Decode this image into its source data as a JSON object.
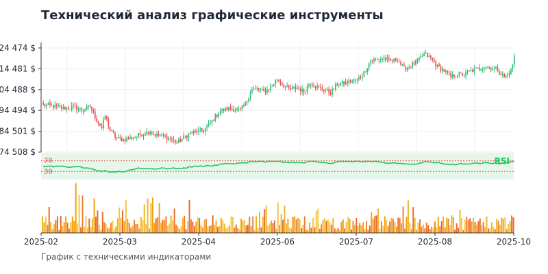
{
  "chart_data": {
    "type": "candlestick",
    "title": "Технический анализ графические инструменты",
    "subtitle": "График с техническими индикаторами",
    "price_axis": {
      "ticks": [
        174508,
        184501,
        194494,
        204488,
        214481,
        224474
      ],
      "tick_labels": [
        "174 508 $",
        "184 501 $",
        "194 494 $",
        "204 488 $",
        "214 481 $",
        "224 474 $"
      ],
      "range": [
        174508,
        224474
      ]
    },
    "x_axis": {
      "tick_labels": [
        "2025-02",
        "2025-03",
        "2025-04",
        "2025-06",
        "2025-07",
        "2025-08",
        "2025-10"
      ],
      "range": [
        "2025-02",
        "2025-10"
      ]
    },
    "price_keypoints": [
      [
        0,
        197000
      ],
      [
        6,
        196500
      ],
      [
        12,
        195500
      ],
      [
        18,
        196200
      ],
      [
        24,
        194500
      ],
      [
        28,
        196500
      ],
      [
        32,
        190000
      ],
      [
        35,
        186000
      ],
      [
        37,
        192000
      ],
      [
        40,
        185000
      ],
      [
        44,
        181000
      ],
      [
        48,
        180500
      ],
      [
        54,
        181500
      ],
      [
        60,
        183500
      ],
      [
        64,
        184500
      ],
      [
        68,
        182500
      ],
      [
        72,
        182000
      ],
      [
        76,
        181000
      ],
      [
        80,
        179000
      ],
      [
        84,
        181500
      ],
      [
        88,
        183500
      ],
      [
        92,
        184500
      ],
      [
        96,
        185000
      ],
      [
        100,
        188500
      ],
      [
        106,
        194500
      ],
      [
        112,
        195500
      ],
      [
        118,
        194500
      ],
      [
        122,
        199000
      ],
      [
        124,
        204000
      ],
      [
        128,
        204800
      ],
      [
        132,
        203500
      ],
      [
        136,
        205500
      ],
      [
        140,
        209500
      ],
      [
        144,
        206500
      ],
      [
        148,
        204500
      ],
      [
        152,
        205500
      ],
      [
        156,
        203500
      ],
      [
        160,
        208000
      ],
      [
        164,
        205500
      ],
      [
        168,
        204500
      ],
      [
        172,
        203000
      ],
      [
        176,
        207000
      ],
      [
        180,
        207500
      ],
      [
        184,
        208500
      ],
      [
        188,
        209000
      ],
      [
        192,
        212500
      ],
      [
        196,
        218500
      ],
      [
        200,
        219000
      ],
      [
        204,
        219500
      ],
      [
        208,
        218000
      ],
      [
        212,
        219000
      ],
      [
        216,
        214500
      ],
      [
        220,
        216000
      ],
      [
        224,
        218000
      ],
      [
        228,
        221500
      ],
      [
        232,
        219500
      ],
      [
        236,
        215500
      ],
      [
        240,
        213500
      ],
      [
        244,
        210500
      ],
      [
        248,
        212000
      ],
      [
        252,
        211500
      ],
      [
        256,
        213500
      ],
      [
        260,
        214500
      ],
      [
        264,
        215500
      ],
      [
        268,
        215000
      ],
      [
        272,
        214000
      ],
      [
        276,
        210500
      ],
      [
        280,
        213500
      ],
      [
        282,
        220000
      ]
    ],
    "rsi": {
      "label": "RSI",
      "upper": 70,
      "lower": 30,
      "upper_label": "70",
      "lower_label": "30"
    },
    "volume": {
      "shown": true
    },
    "grid": true,
    "colors": {
      "up": "#2ebd72",
      "down": "#e8504f",
      "rsi_line": "#22c55e",
      "rsi_band": "#e6f6ea",
      "rsi_threshold": "#e8504f",
      "volume_bars": [
        "#f0b429",
        "#f59e0b",
        "#ef7d2f",
        "#e86a26",
        "#f5c542"
      ]
    }
  }
}
